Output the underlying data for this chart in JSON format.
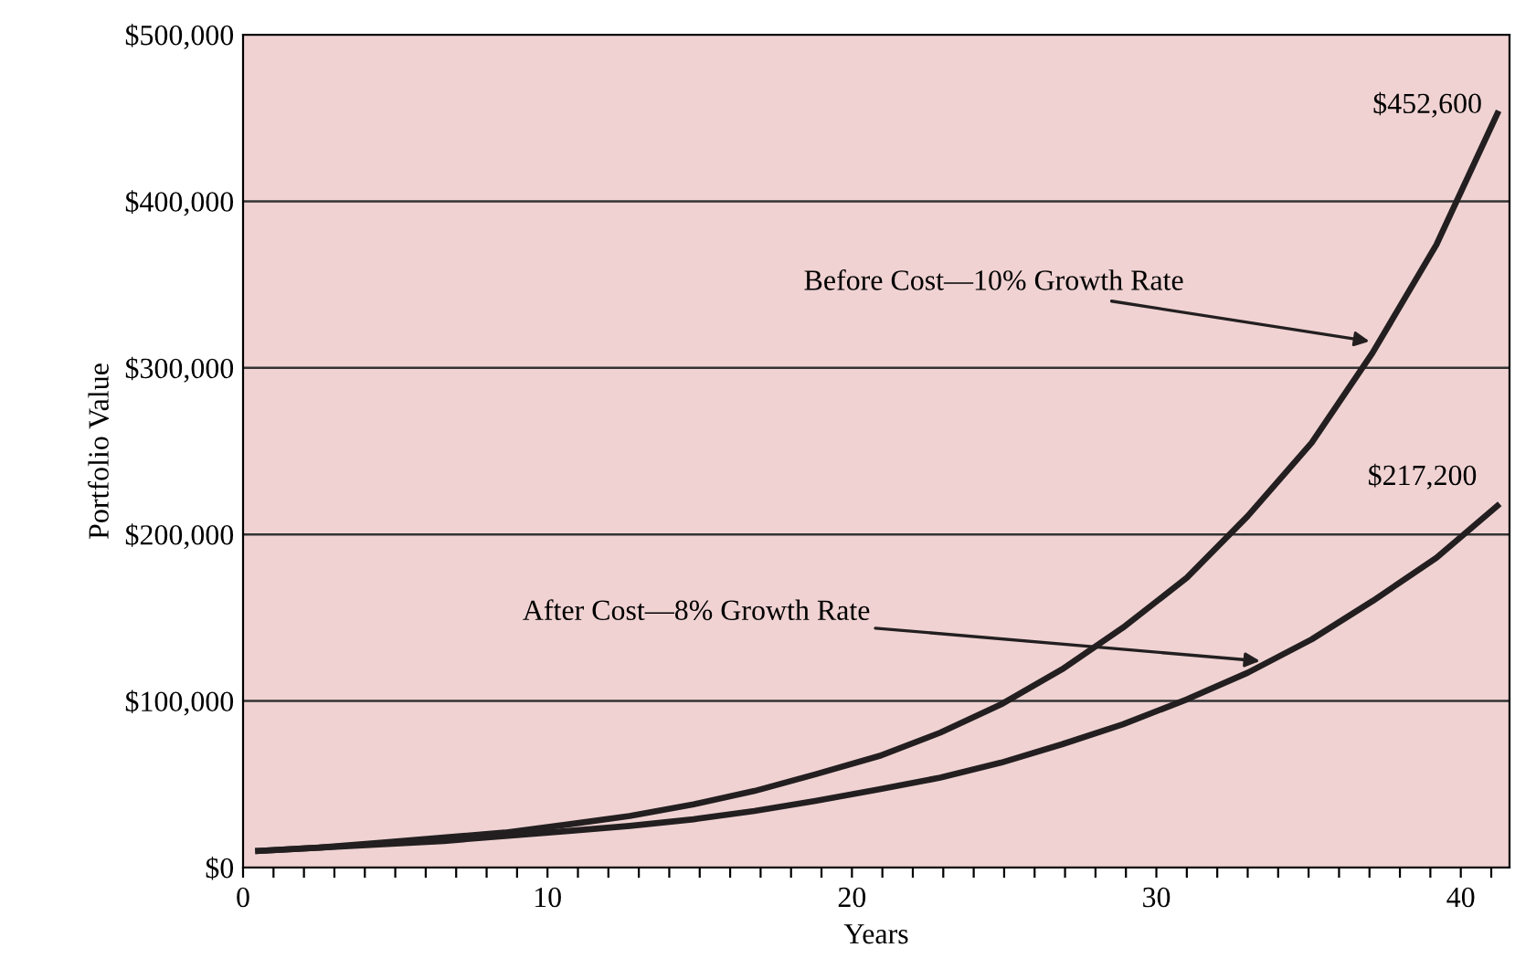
{
  "chart_data": {
    "type": "line",
    "xlabel": "Years",
    "ylabel": "Portfolio Value",
    "x": [
      0.5,
      2.5,
      4.6,
      6.6,
      8.6,
      10.7,
      12.7,
      14.8,
      16.8,
      18.8,
      20.9,
      22.9,
      24.9,
      26.9,
      28.9,
      31.0,
      33.0,
      35.1,
      37.1,
      39.2,
      41.2
    ],
    "series": [
      {
        "color": "#231f20",
        "values": [
          10000,
          12000,
          15000,
          18000,
          21000,
          26000,
          31000,
          38000,
          46000,
          56000,
          67000,
          81000,
          98000,
          119000,
          144000,
          174000,
          211000,
          255000,
          309000,
          374000,
          452600
        ],
        "value_labels": [
          null,
          null,
          null,
          null,
          null,
          null,
          null,
          null,
          null,
          null,
          null,
          null,
          null,
          null,
          null,
          null,
          null,
          null,
          null,
          null,
          "$452,600"
        ]
      },
      {
        "color": "#231f20",
        "values": [
          10000,
          12000,
          14000,
          16000,
          19000,
          22000,
          25000,
          29000,
          34000,
          40000,
          47000,
          54000,
          63000,
          74000,
          86000,
          101000,
          117000,
          137000,
          160000,
          186000,
          217200
        ],
        "value_labels": [
          null,
          null,
          null,
          null,
          null,
          null,
          null,
          null,
          null,
          null,
          null,
          null,
          null,
          null,
          null,
          null,
          null,
          null,
          null,
          null,
          "$217,200"
        ]
      }
    ],
    "xlim": [
      0,
      41.6
    ],
    "ylim": [
      0,
      500000
    ],
    "xticks": [
      0,
      {
        "value": 1,
        "label": null
      },
      {
        "value": 2,
        "label": null
      },
      {
        "value": 3,
        "label": null
      },
      {
        "value": 4,
        "label": null
      },
      {
        "value": 5,
        "label": null
      },
      {
        "value": 6,
        "label": null
      },
      {
        "value": 7,
        "label": null
      },
      {
        "value": 8,
        "label": null
      },
      {
        "value": 9,
        "label": null
      },
      10,
      {
        "value": 11,
        "label": null
      },
      {
        "value": 12,
        "label": null
      },
      {
        "value": 13,
        "label": null
      },
      {
        "value": 14,
        "label": null
      },
      {
        "value": 15,
        "label": null
      },
      {
        "value": 16,
        "label": null
      },
      {
        "value": 17,
        "label": null
      },
      {
        "value": 18,
        "label": null
      },
      {
        "value": 19,
        "label": null
      },
      20,
      {
        "value": 21,
        "label": null
      },
      {
        "value": 22,
        "label": null
      },
      {
        "value": 23,
        "label": null
      },
      {
        "value": 24,
        "label": null
      },
      {
        "value": 25,
        "label": null
      },
      {
        "value": 26,
        "label": null
      },
      {
        "value": 27,
        "label": null
      },
      {
        "value": 28,
        "label": null
      },
      {
        "value": 29,
        "label": null
      },
      30,
      {
        "value": 31,
        "label": null
      },
      {
        "value": 32,
        "label": null
      },
      {
        "value": 33,
        "label": null
      },
      {
        "value": 34,
        "label": null
      },
      {
        "value": 35,
        "label": null
      },
      {
        "value": 36,
        "label": null
      },
      {
        "value": 37,
        "label": null
      },
      {
        "value": 38,
        "label": null
      },
      {
        "value": 39,
        "label": null
      },
      40,
      {
        "value": 41,
        "label": null
      }
    ],
    "yticks": [
      {
        "value": 0,
        "label": "$0"
      },
      {
        "value": 100000,
        "label": "$100,000"
      },
      {
        "value": 200000,
        "label": "$200,000"
      },
      {
        "value": 300000,
        "label": "$300,000"
      },
      {
        "value": 400000,
        "label": "$400,000"
      },
      {
        "value": 500000,
        "label": "$500,000"
      }
    ],
    "grid": "y",
    "legend": false,
    "marker": "none",
    "line_style": "solid",
    "annotations": [
      {
        "text": "Before Cost—10% Growth Rate",
        "x": 37.0,
        "y": 316000
      },
      {
        "text": "After Cost—8% Growth Rate",
        "x": 33.4,
        "y": 124000
      }
    ]
  }
}
